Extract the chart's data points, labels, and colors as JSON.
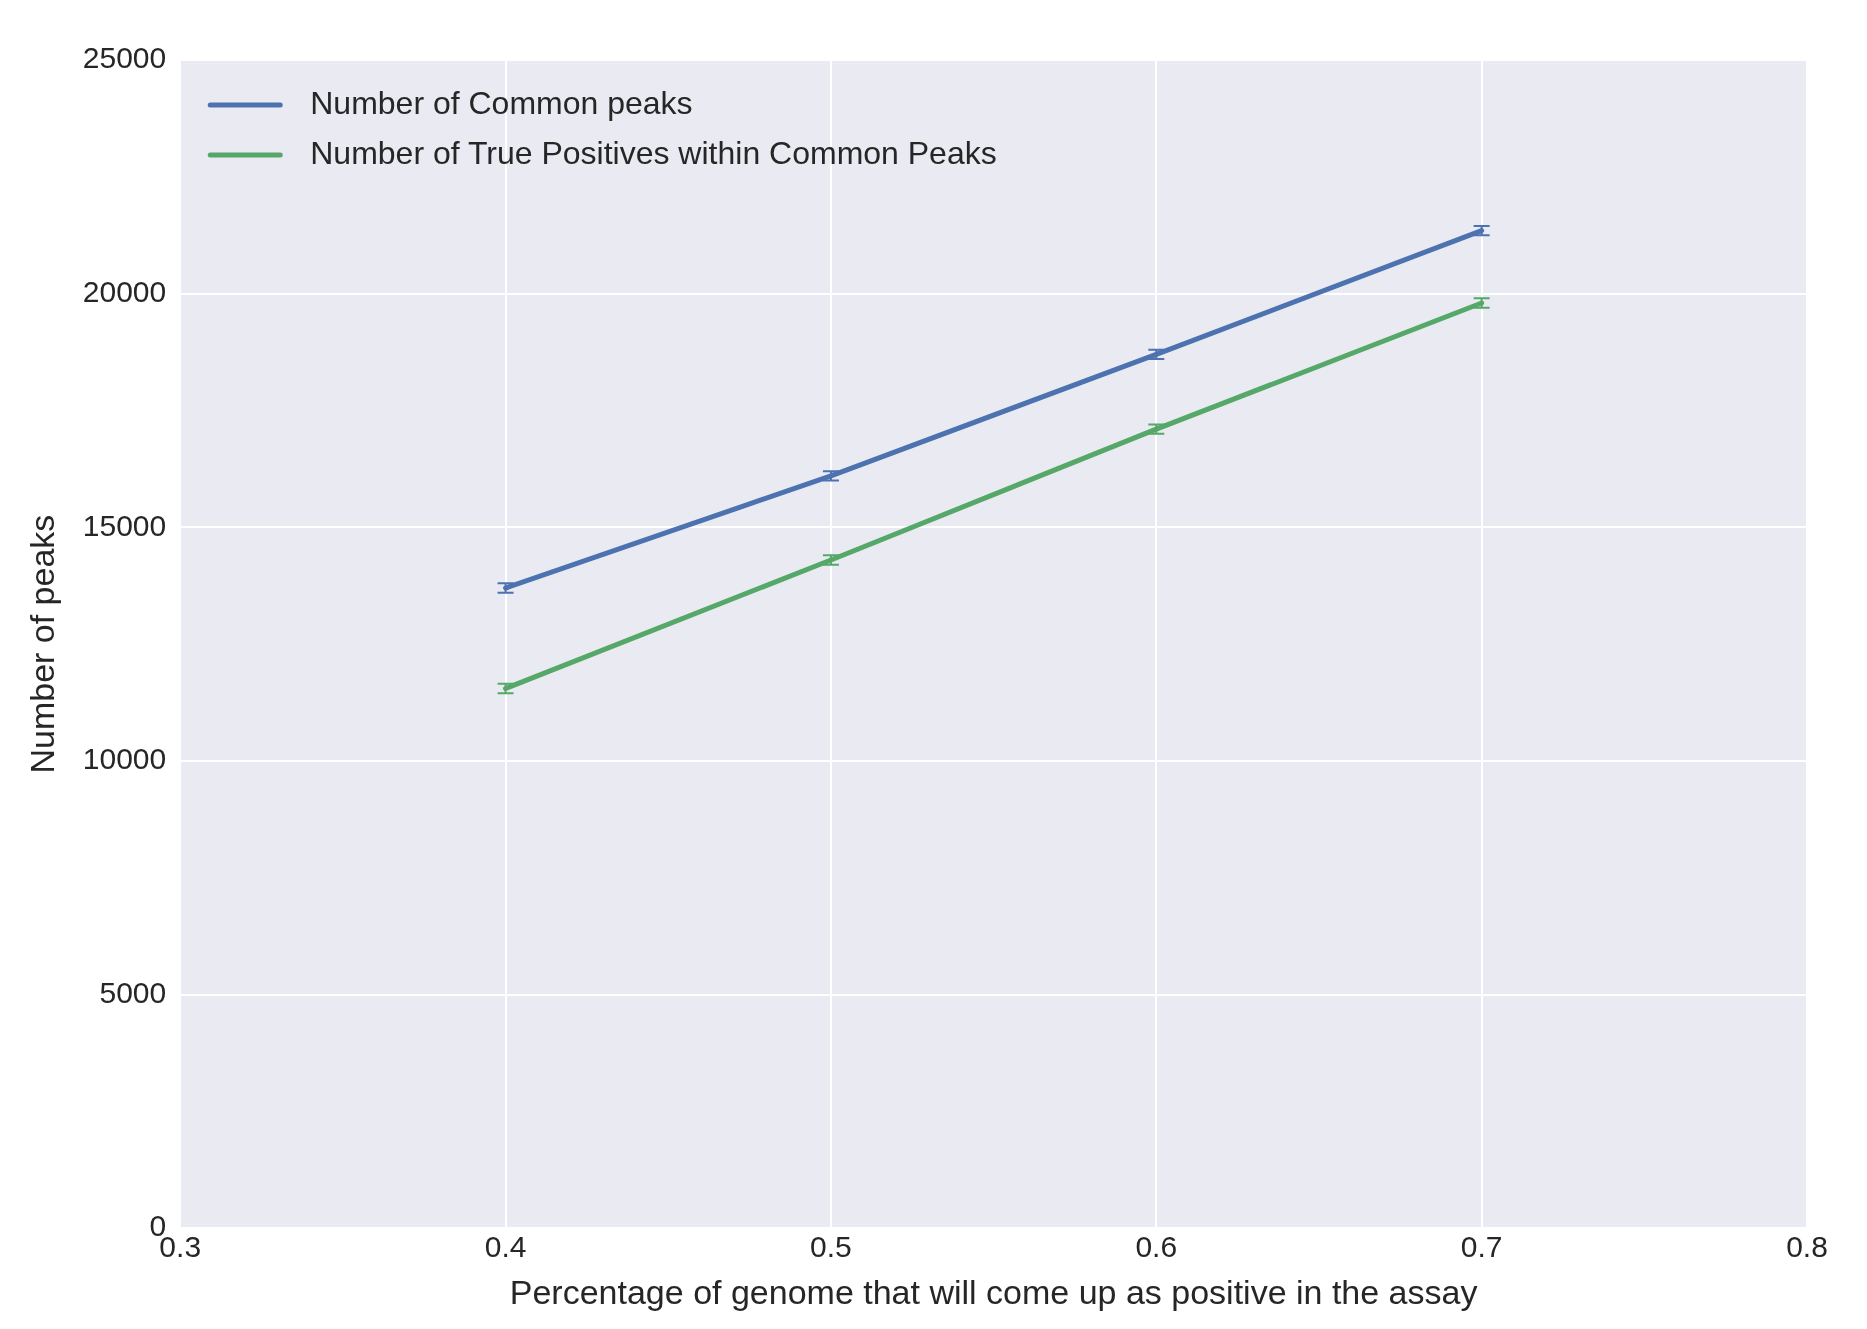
{
  "chart_data": {
    "type": "line",
    "xlabel": "Percentage of genome that will come up as positive in the assay",
    "ylabel": "Number of peaks",
    "x": [
      0.4,
      0.5,
      0.6,
      0.7
    ],
    "series": [
      {
        "name": "Number of Common peaks",
        "color": "#4c72b0",
        "values": [
          13700,
          16100,
          18700,
          21350
        ],
        "errors": [
          100,
          100,
          100,
          100
        ]
      },
      {
        "name": "Number of True Positives within Common Peaks",
        "color": "#55a868",
        "values": [
          11550,
          14300,
          17100,
          19800
        ],
        "errors": [
          100,
          100,
          100,
          100
        ]
      }
    ],
    "xlim": [
      0.3,
      0.8
    ],
    "xticks": [
      0.3,
      0.4,
      0.5,
      0.6,
      0.7,
      0.8
    ],
    "ylim": [
      0,
      25000
    ],
    "yticks": [
      0,
      5000,
      10000,
      15000,
      20000,
      25000
    ],
    "grid": true,
    "legend": "top left",
    "marker": "none",
    "line_style": "solid"
  }
}
